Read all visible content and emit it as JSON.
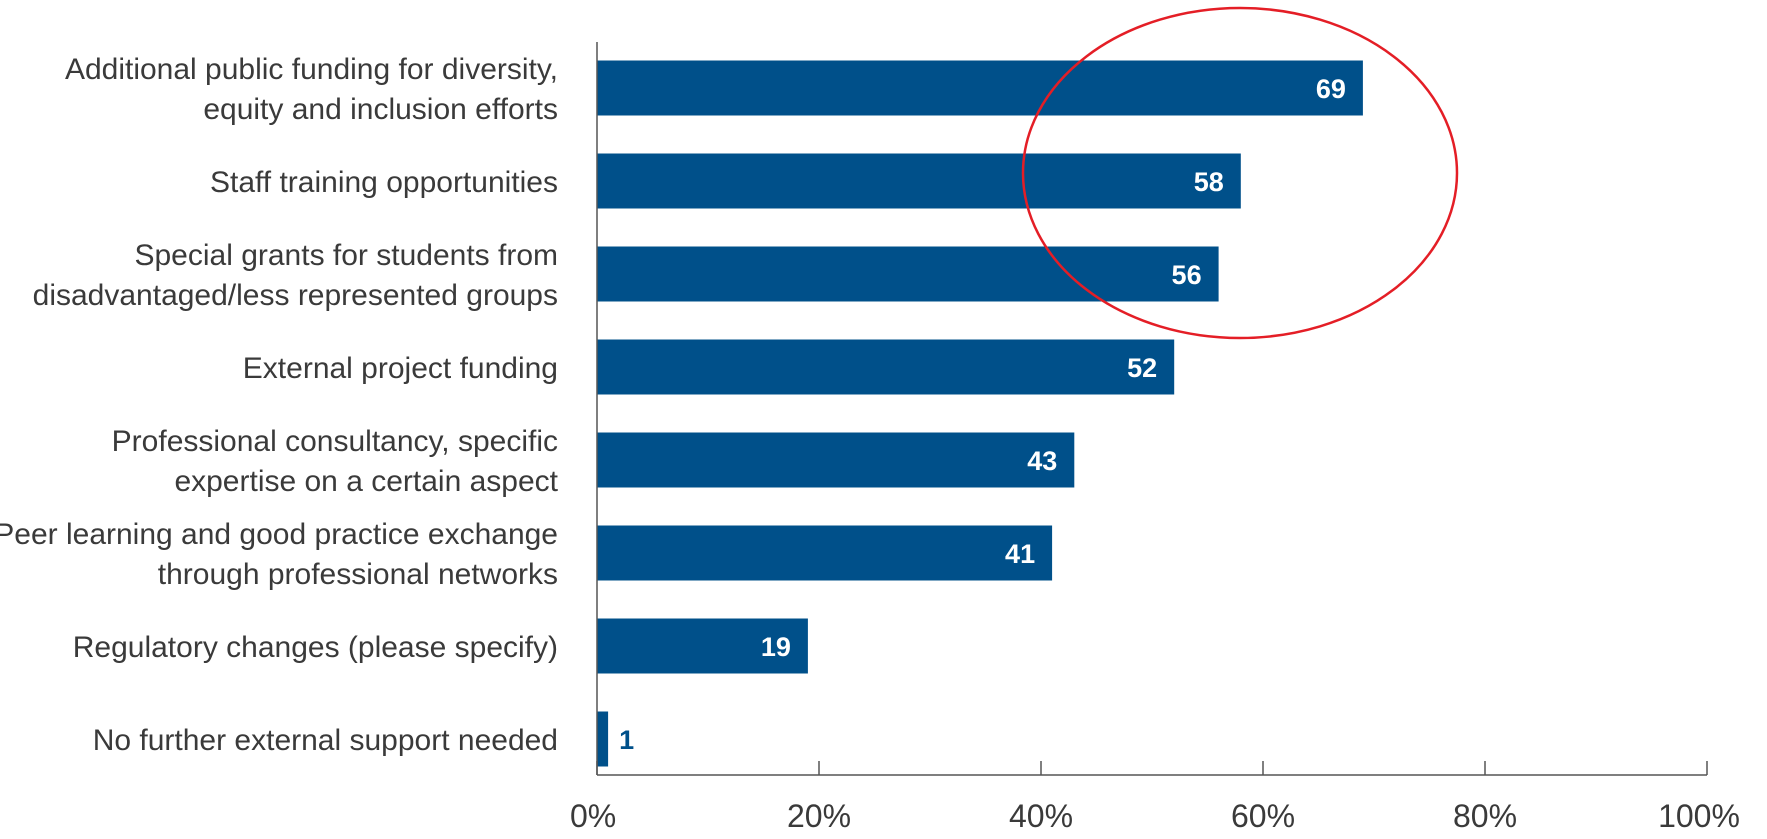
{
  "chart_data": {
    "type": "bar",
    "orientation": "horizontal",
    "categories": [
      [
        "Additional public funding for diversity,",
        "equity and inclusion efforts"
      ],
      [
        "Staff training opportunities"
      ],
      [
        "Special grants for students from",
        "disadvantaged/less represented groups"
      ],
      [
        "External project funding"
      ],
      [
        "Professional consultancy, specific",
        "expertise on a certain aspect"
      ],
      [
        "Peer learning and good practice exchange",
        "through professional networks"
      ],
      [
        "Regulatory changes (please specify)"
      ],
      [
        "No further external support needed"
      ]
    ],
    "values": [
      69,
      58,
      56,
      52,
      43,
      41,
      19,
      1
    ],
    "x_ticks": [
      "0%",
      "20%",
      "40%",
      "60%",
      "80%",
      "100%"
    ],
    "xlim": [
      0,
      100
    ],
    "grid": false,
    "bar_color": "#00508a",
    "value_label_color_inside": "#ffffff",
    "value_label_color_outside": "#00508a",
    "annotation": {
      "type": "ellipse",
      "color": "#e41e26",
      "highlights": [
        0,
        1,
        2
      ]
    }
  }
}
